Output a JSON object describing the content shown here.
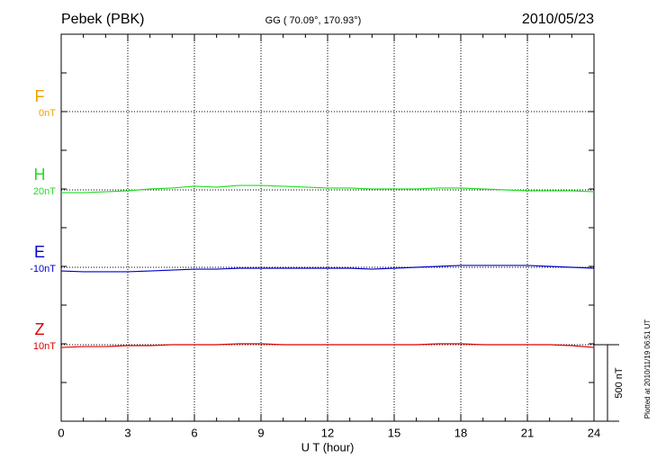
{
  "chart_data": {
    "type": "line",
    "title": "Pebek (PBK)",
    "subtitle": "GG ( 70.09°, 170.93°)",
    "date": "2010/05/23",
    "x_label": "U T (hour)",
    "footnote": "Plotted at 2010/11/19 06:51  UT",
    "xlim": [
      0,
      24
    ],
    "xticks": [
      0,
      3,
      6,
      9,
      12,
      15,
      18,
      21,
      24
    ],
    "grid": true,
    "scale_bar": {
      "value": 500,
      "label": "500 nT"
    },
    "x": [
      0,
      1,
      2,
      3,
      4,
      5,
      6,
      7,
      8,
      9,
      10,
      11,
      12,
      13,
      14,
      15,
      16,
      17,
      18,
      19,
      20,
      21,
      22,
      23,
      24
    ],
    "series": [
      {
        "name": "F",
        "color": "#f0a000",
        "baseline": {
          "value": 0,
          "label": "0nT"
        },
        "values": [
          null,
          null,
          null,
          null,
          null,
          null,
          null,
          null,
          null,
          null,
          null,
          null,
          null,
          null,
          null,
          null,
          null,
          null,
          null,
          null,
          null,
          null,
          null,
          null,
          null
        ]
      },
      {
        "name": "H",
        "color": "#22dd22",
        "baseline": {
          "value": 20,
          "label": "20nT"
        },
        "values": [
          2,
          2,
          8,
          14,
          26,
          32,
          44,
          38,
          49,
          49,
          44,
          38,
          32,
          32,
          26,
          26,
          26,
          32,
          32,
          26,
          20,
          14,
          14,
          14,
          8
        ]
      },
      {
        "name": "E",
        "color": "#0000cc",
        "baseline": {
          "value": -10,
          "label": "-10nT"
        },
        "values": [
          -34,
          -39,
          -39,
          -39,
          -34,
          -28,
          -22,
          -22,
          -16,
          -16,
          -16,
          -16,
          -16,
          -16,
          -22,
          -16,
          -10,
          -4,
          2,
          2,
          2,
          2,
          -4,
          -10,
          -16
        ]
      },
      {
        "name": "Z",
        "color": "#dd0000",
        "baseline": {
          "value": 10,
          "label": "10nT"
        },
        "values": [
          -8,
          -2,
          -2,
          4,
          4,
          10,
          10,
          10,
          16,
          16,
          10,
          10,
          10,
          10,
          10,
          10,
          10,
          16,
          16,
          10,
          10,
          10,
          10,
          4,
          -8
        ]
      }
    ]
  }
}
